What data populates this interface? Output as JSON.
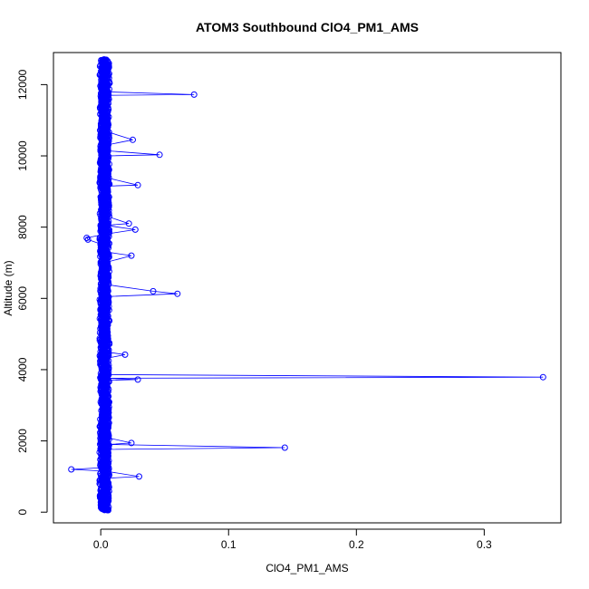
{
  "chart_data": {
    "type": "line",
    "title": "ATOM3 Southbound ClO4_PM1_AMS",
    "xlabel": "ClO4_PM1_AMS",
    "ylabel": "Altitude (m)",
    "xlim": [
      -0.037,
      0.36
    ],
    "ylim": [
      -300,
      12900
    ],
    "x_ticks": [
      0.0,
      0.1,
      0.2,
      0.3
    ],
    "x_tick_labels": [
      "0.0",
      "0.1",
      "0.2",
      "0.3"
    ],
    "y_ticks": [
      0,
      2000,
      4000,
      6000,
      8000,
      10000,
      12000
    ],
    "y_tick_labels": [
      "0",
      "2000",
      "4000",
      "6000",
      "8000",
      "10000",
      "12000"
    ],
    "series": [
      {
        "color": "#0000ff",
        "marker": "open-circle",
        "points": [
          {
            "x": 0.002,
            "y": 12600
          },
          {
            "x": 0.005,
            "y": 12400
          },
          {
            "x": 0.001,
            "y": 12200
          },
          {
            "x": 0.004,
            "y": 12000
          },
          {
            "x": 0.003,
            "y": 11800
          },
          {
            "x": 0.073,
            "y": 11720
          },
          {
            "x": 0.004,
            "y": 11700
          },
          {
            "x": 0.002,
            "y": 11500
          },
          {
            "x": 0.006,
            "y": 11300
          },
          {
            "x": 0.001,
            "y": 11100
          },
          {
            "x": 0.005,
            "y": 10900
          },
          {
            "x": 0.003,
            "y": 10700
          },
          {
            "x": 0.025,
            "y": 10450
          },
          {
            "x": 0.004,
            "y": 10300
          },
          {
            "x": 0.002,
            "y": 10150
          },
          {
            "x": 0.046,
            "y": 10030
          },
          {
            "x": 0.005,
            "y": 10000
          },
          {
            "x": 0.001,
            "y": 9800
          },
          {
            "x": 0.006,
            "y": 9600
          },
          {
            "x": 0.003,
            "y": 9400
          },
          {
            "x": 0.029,
            "y": 9180
          },
          {
            "x": 0.004,
            "y": 9150
          },
          {
            "x": 0.002,
            "y": 8900
          },
          {
            "x": 0.005,
            "y": 8600
          },
          {
            "x": 0.001,
            "y": 8350
          },
          {
            "x": 0.022,
            "y": 8100
          },
          {
            "x": 0.004,
            "y": 8050
          },
          {
            "x": 0.027,
            "y": 7930
          },
          {
            "x": 0.003,
            "y": 7800
          },
          {
            "x": -0.011,
            "y": 7700
          },
          {
            "x": -0.01,
            "y": 7650
          },
          {
            "x": 0.002,
            "y": 7500
          },
          {
            "x": 0.005,
            "y": 7300
          },
          {
            "x": 0.024,
            "y": 7200
          },
          {
            "x": 0.003,
            "y": 7000
          },
          {
            "x": 0.001,
            "y": 6800
          },
          {
            "x": 0.004,
            "y": 6600
          },
          {
            "x": 0.002,
            "y": 6400
          },
          {
            "x": 0.041,
            "y": 6200
          },
          {
            "x": 0.06,
            "y": 6130
          },
          {
            "x": 0.005,
            "y": 6050
          },
          {
            "x": 0.003,
            "y": 5900
          },
          {
            "x": 0.001,
            "y": 5700
          },
          {
            "x": 0.004,
            "y": 5500
          },
          {
            "x": 0.002,
            "y": 5300
          },
          {
            "x": 0.005,
            "y": 5100
          },
          {
            "x": 0.003,
            "y": 4900
          },
          {
            "x": 0.001,
            "y": 4700
          },
          {
            "x": 0.004,
            "y": 4500
          },
          {
            "x": 0.002,
            "y": 4300
          },
          {
            "x": 0.019,
            "y": 4420
          },
          {
            "x": 0.005,
            "y": 4100
          },
          {
            "x": 0.003,
            "y": 3950
          },
          {
            "x": 0.006,
            "y": 3860
          },
          {
            "x": 0.346,
            "y": 3790
          },
          {
            "x": 0.004,
            "y": 3760
          },
          {
            "x": 0.029,
            "y": 3720
          },
          {
            "x": 0.002,
            "y": 3700
          },
          {
            "x": 0.003,
            "y": 3500
          },
          {
            "x": 0.001,
            "y": 3300
          },
          {
            "x": 0.004,
            "y": 3100
          },
          {
            "x": 0.002,
            "y": 2900
          },
          {
            "x": 0.005,
            "y": 2700
          },
          {
            "x": 0.003,
            "y": 2500
          },
          {
            "x": 0.001,
            "y": 2300
          },
          {
            "x": 0.004,
            "y": 2100
          },
          {
            "x": 0.024,
            "y": 1940
          },
          {
            "x": 0.006,
            "y": 1900
          },
          {
            "x": 0.144,
            "y": 1810
          },
          {
            "x": 0.005,
            "y": 1760
          },
          {
            "x": 0.002,
            "y": 1650
          },
          {
            "x": 0.003,
            "y": 1450
          },
          {
            "x": 0.001,
            "y": 1250
          },
          {
            "x": -0.023,
            "y": 1200
          },
          {
            "x": 0.004,
            "y": 1150
          },
          {
            "x": 0.03,
            "y": 1000
          },
          {
            "x": 0.002,
            "y": 950
          },
          {
            "x": 0.005,
            "y": 800
          },
          {
            "x": 0.003,
            "y": 600
          },
          {
            "x": 0.001,
            "y": 400
          },
          {
            "x": 0.004,
            "y": 250
          },
          {
            "x": 0.002,
            "y": 100
          }
        ]
      }
    ],
    "background_cloud": {
      "x_center": 0.003,
      "x_spread": 0.004,
      "y_range": [
        50,
        12650
      ],
      "points_per_band": 18,
      "band_step": 60
    },
    "grid": false,
    "legend": "none"
  }
}
